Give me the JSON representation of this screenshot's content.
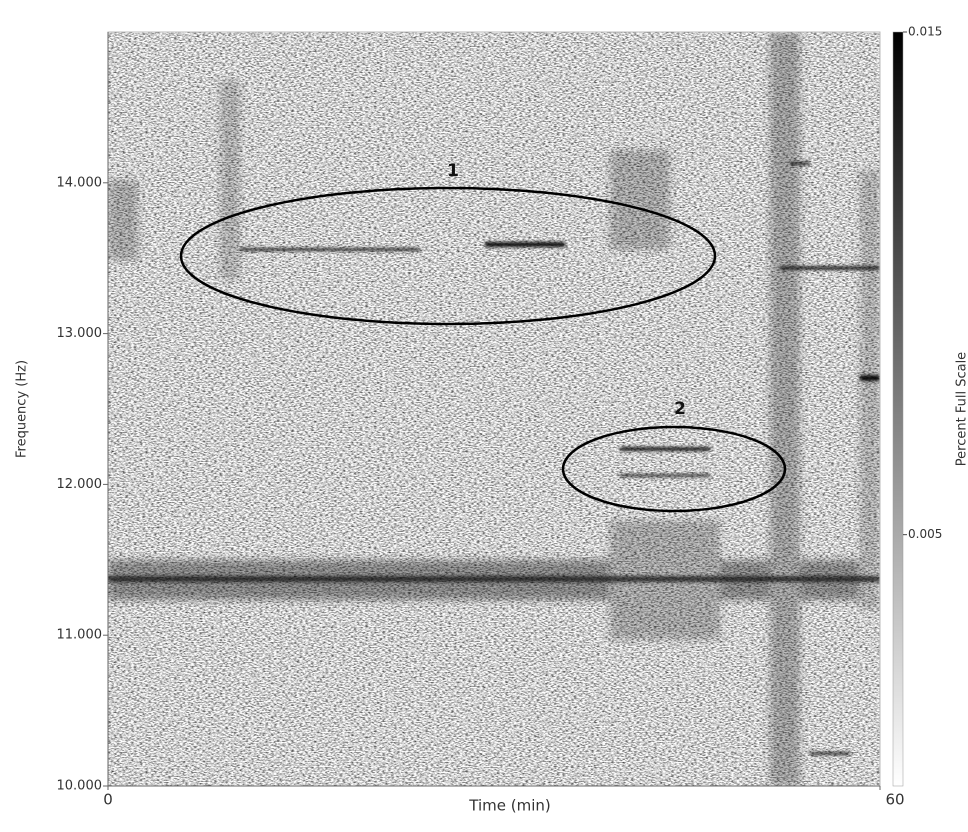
{
  "chart_data": {
    "type": "spectrogram",
    "x_label": "Time (min)",
    "y_label": "Frequency (Hz)",
    "xlim": [
      0,
      60
    ],
    "xticks": [
      0,
      60
    ],
    "ylim": [
      10,
      15
    ],
    "yticks": [
      {
        "value": 10,
        "label": "10.000"
      },
      {
        "value": 11,
        "label": "11.000"
      },
      {
        "value": 12,
        "label": "12.000"
      },
      {
        "value": 13,
        "label": "13.000"
      },
      {
        "value": 14,
        "label": "14.000"
      }
    ],
    "colorbar": {
      "label": "Percent Full Scale",
      "lim": [
        0,
        0.015
      ],
      "ticks": [
        0.005,
        0.015
      ],
      "colors": [
        "#ffffff",
        "#000000"
      ]
    },
    "annotations": [
      {
        "text": "1"
      },
      {
        "text": "2"
      }
    ]
  }
}
